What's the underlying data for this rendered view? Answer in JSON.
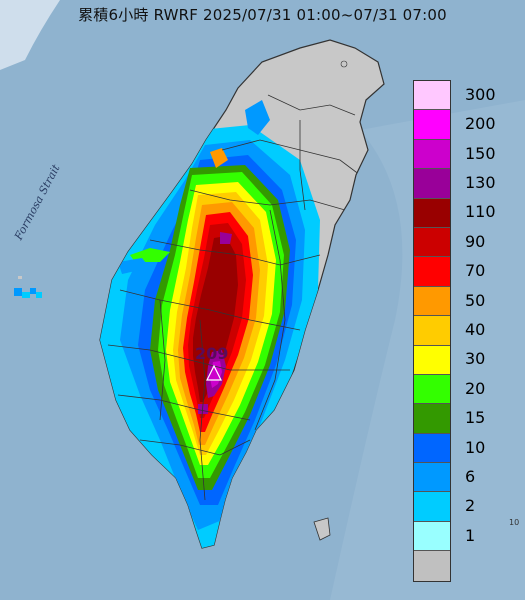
{
  "title": "累積6小時 RWRF 2025/07/31 01:00~07/31 07:00",
  "strait_label": "Formosa Strait",
  "peak_value": "209",
  "corner_number": "10",
  "legend": [
    {
      "label": "300",
      "color": "#ffc8ff"
    },
    {
      "label": "200",
      "color": "#ff00ff"
    },
    {
      "label": "150",
      "color": "#cc00cc"
    },
    {
      "label": "130",
      "color": "#990099"
    },
    {
      "label": "110",
      "color": "#990000"
    },
    {
      "label": "90",
      "color": "#cc0000"
    },
    {
      "label": "70",
      "color": "#ff0000"
    },
    {
      "label": "50",
      "color": "#ff9900"
    },
    {
      "label": "40",
      "color": "#ffcc00"
    },
    {
      "label": "30",
      "color": "#ffff00"
    },
    {
      "label": "20",
      "color": "#33ff00"
    },
    {
      "label": "15",
      "color": "#339900"
    },
    {
      "label": "10",
      "color": "#0066ff"
    },
    {
      "label": "6",
      "color": "#0099ff"
    },
    {
      "label": "2",
      "color": "#00ccff"
    },
    {
      "label": "1",
      "color": "#99ffff"
    },
    {
      "label": "",
      "color": "#c0c0c0"
    }
  ]
}
